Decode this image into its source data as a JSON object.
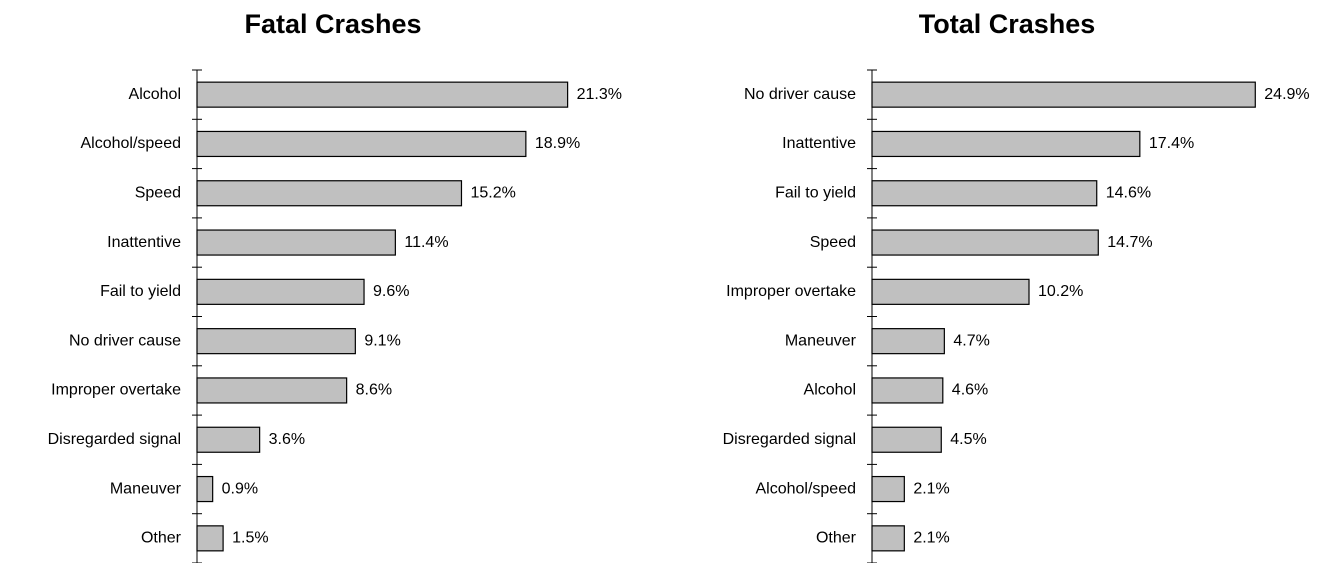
{
  "chart_data": [
    {
      "type": "bar",
      "orientation": "horizontal",
      "title": "Fatal Crashes",
      "categories": [
        "Alcohol",
        "Alcohol/speed",
        "Speed",
        "Inattentive",
        "Fail to yield",
        "No driver cause",
        "Improper overtake",
        "Disregarded signal",
        "Maneuver",
        "Other"
      ],
      "values": [
        21.3,
        18.9,
        15.2,
        11.4,
        9.6,
        9.1,
        8.6,
        3.6,
        0.9,
        1.5
      ],
      "value_labels": [
        "21.3%",
        "18.9%",
        "15.2%",
        "11.4%",
        "9.6%",
        "9.1%",
        "8.6%",
        "3.6%",
        "0.9%",
        "1.5%"
      ],
      "color": "#c0c0c0",
      "xlim": [
        0,
        25
      ]
    },
    {
      "type": "bar",
      "orientation": "horizontal",
      "title": "Total Crashes",
      "categories": [
        "No driver cause",
        "Inattentive",
        "Fail to yield",
        "Speed",
        "Improper overtake",
        "Maneuver",
        "Alcohol",
        "Disregarded signal",
        "Alcohol/speed",
        "Other"
      ],
      "values": [
        24.9,
        17.4,
        14.6,
        14.7,
        10.2,
        4.7,
        4.6,
        4.5,
        2.1,
        2.1
      ],
      "value_labels": [
        "24.9%",
        "17.4%",
        "14.6%",
        "14.7%",
        "10.2%",
        "4.7%",
        "4.6%",
        "4.5%",
        "2.1%",
        "2.1%"
      ],
      "color": "#c0c0c0",
      "xlim": [
        0,
        28
      ]
    }
  ]
}
